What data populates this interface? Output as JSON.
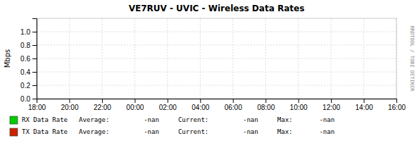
{
  "chart_data": {
    "type": "line",
    "title": "VE7RUV - UVIC - Wireless Data Rates",
    "ylabel": "Mbps",
    "categories": [
      "18:00",
      "20:00",
      "22:00",
      "00:00",
      "02:00",
      "04:00",
      "06:00",
      "08:00",
      "10:00",
      "12:00",
      "14:00",
      "16:00"
    ],
    "series": [
      {
        "name": "RX Data Rate",
        "color": "#00cc00",
        "values": [
          null,
          null,
          null,
          null,
          null,
          null,
          null,
          null,
          null,
          null,
          null,
          null
        ]
      },
      {
        "name": "TX Data Rate",
        "color": "#cc2200",
        "values": [
          null,
          null,
          null,
          null,
          null,
          null,
          null,
          null,
          null,
          null,
          null,
          null
        ]
      }
    ],
    "ylim": [
      0.0,
      1.2
    ],
    "yticks": [
      {
        "value": 0.0,
        "label": "0.0"
      },
      {
        "value": 0.2,
        "label": "0.2"
      },
      {
        "value": 0.4,
        "label": "0.4"
      },
      {
        "value": 0.6,
        "label": "0.6"
      },
      {
        "value": 0.8,
        "label": "0.8"
      },
      {
        "value": 1.0,
        "label": "1.0"
      }
    ],
    "grid": true,
    "annotations": [
      "RRDTOOL / TOBI OETIKER",
      "Average:         -nan     Current:         -nan     Max:       -nan",
      "Average:         -nan     Current:         -nan     Max:       -nan"
    ]
  }
}
